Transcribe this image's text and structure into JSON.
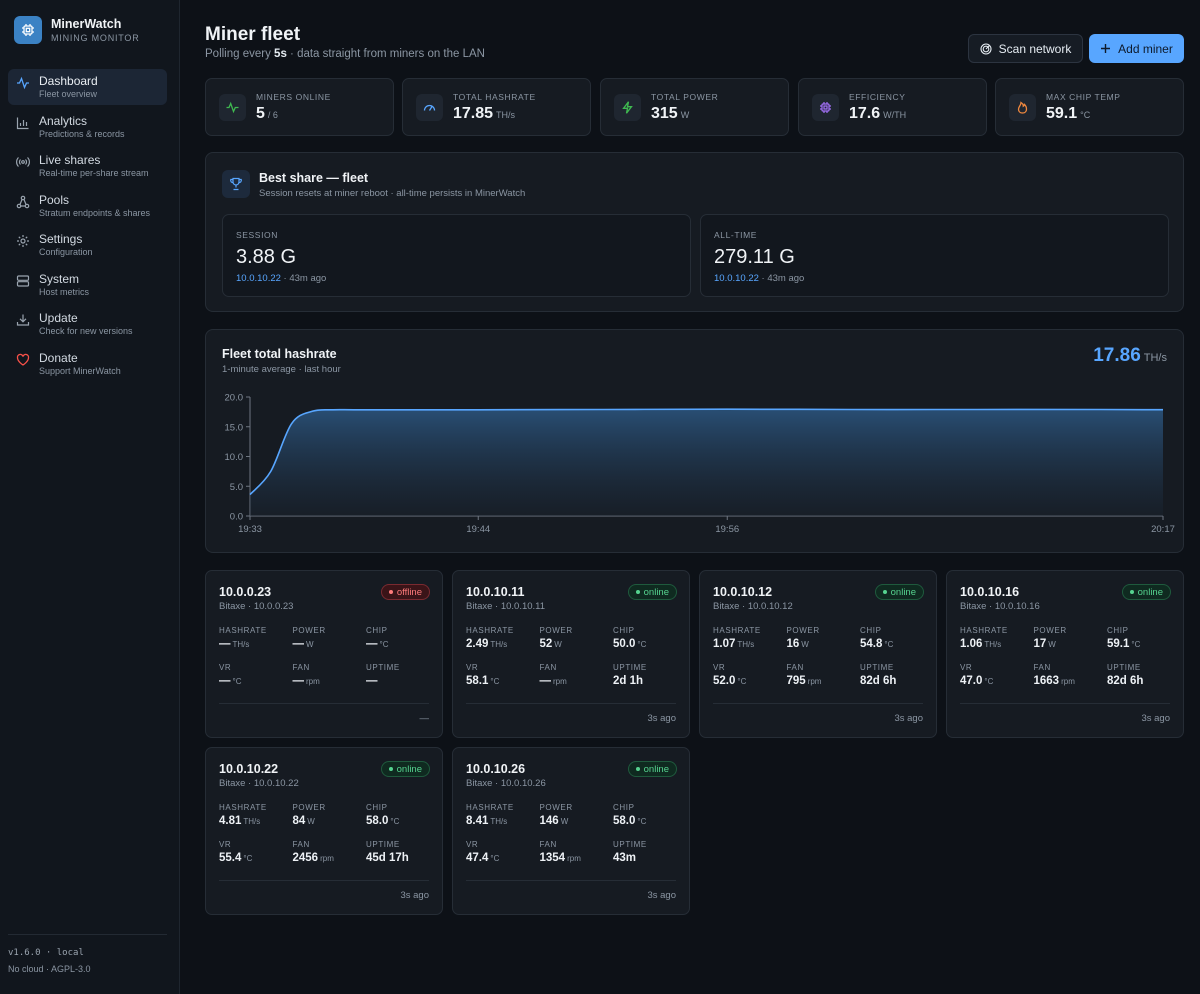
{
  "app": {
    "name": "MinerWatch",
    "subtitle": "MINING MONITOR"
  },
  "nav": [
    {
      "label": "Dashboard",
      "sub": "Fleet overview",
      "icon": "activity-icon",
      "active": true
    },
    {
      "label": "Analytics",
      "sub": "Predictions & records",
      "icon": "bar-chart-icon"
    },
    {
      "label": "Live shares",
      "sub": "Real-time per-share stream",
      "icon": "broadcast-icon"
    },
    {
      "label": "Pools",
      "sub": "Stratum endpoints & shares",
      "icon": "network-icon"
    },
    {
      "label": "Settings",
      "sub": "Configuration",
      "icon": "gear-icon"
    },
    {
      "label": "System",
      "sub": "Host metrics",
      "icon": "server-icon"
    },
    {
      "label": "Update",
      "sub": "Check for new versions",
      "icon": "download-icon"
    },
    {
      "label": "Donate",
      "sub": "Support MinerWatch",
      "icon": "heart-icon"
    }
  ],
  "footer": {
    "version": "v1.6.0 · local",
    "license": "No cloud · AGPL-3.0"
  },
  "header": {
    "title": "Miner fleet",
    "sub_pre": "Polling every ",
    "sub_interval": "5s",
    "sub_post": " · data straight from miners on the LAN",
    "scan_label": "Scan network",
    "add_label": "Add miner"
  },
  "stats": [
    {
      "label": "MINERS ONLINE",
      "value": "5",
      "unit": "/ 6",
      "icon": "pulse-icon",
      "color": "#3fb950"
    },
    {
      "label": "TOTAL HASHRATE",
      "value": "17.85",
      "unit": "TH/s",
      "icon": "gauge-icon",
      "color": "#58a6ff"
    },
    {
      "label": "TOTAL POWER",
      "value": "315",
      "unit": "W",
      "icon": "bolt-icon",
      "color": "#3fb950"
    },
    {
      "label": "EFFICIENCY",
      "value": "17.6",
      "unit": "W/TH",
      "icon": "chip-icon",
      "color": "#a371f7"
    },
    {
      "label": "MAX CHIP TEMP",
      "value": "59.1",
      "unit": "°C",
      "icon": "flame-icon",
      "color": "#f0883e"
    }
  ],
  "best_share": {
    "title": "Best share — fleet",
    "sub": "Session resets at miner reboot · all-time persists in MinerWatch",
    "session": {
      "label": "SESSION",
      "value": "3.88 G",
      "ip": "10.0.10.22",
      "ago": " · 43m ago"
    },
    "alltime": {
      "label": "ALL-TIME",
      "value": "279.11 G",
      "ip": "10.0.10.22",
      "ago": " · 43m ago"
    }
  },
  "chart": {
    "title": "Fleet total hashrate",
    "sub": "1-minute average · last hour",
    "current_value": "17.86",
    "current_unit": "TH/s"
  },
  "chart_data": {
    "type": "area",
    "title": "Fleet total hashrate",
    "xlabel": "",
    "ylabel": "",
    "ylim": [
      0,
      20
    ],
    "yticks": [
      "0.0",
      "5.0",
      "10.0",
      "15.0",
      "20.0"
    ],
    "xticks": [
      "19:33",
      "19:44",
      "19:56",
      "20:17"
    ],
    "x": [
      "19:33",
      "19:34",
      "19:35",
      "19:36",
      "19:37",
      "19:38",
      "19:40",
      "19:44",
      "19:50",
      "19:56",
      "20:02",
      "20:08",
      "20:14",
      "20:17"
    ],
    "values": [
      3.6,
      7.5,
      15.5,
      17.6,
      17.85,
      17.85,
      17.85,
      17.85,
      17.9,
      17.95,
      17.9,
      17.9,
      17.9,
      17.86
    ],
    "color": "#58a6ff",
    "grid": false
  },
  "miners": [
    {
      "ip": "10.0.0.23",
      "model": "Bitaxe · 10.0.0.23",
      "status": "offline",
      "hashrate": "—",
      "power": "—",
      "chip": "—",
      "vr": "—",
      "fan": "—",
      "uptime": "—",
      "ago": "—"
    },
    {
      "ip": "10.0.10.11",
      "model": "Bitaxe · 10.0.10.11",
      "status": "online",
      "hashrate": "2.49",
      "power": "52",
      "chip": "50.0",
      "vr": "58.1",
      "fan": "—",
      "uptime": "2d 1h",
      "ago": "3s ago"
    },
    {
      "ip": "10.0.10.12",
      "model": "Bitaxe · 10.0.10.12",
      "status": "online",
      "hashrate": "1.07",
      "power": "16",
      "chip": "54.8",
      "vr": "52.0",
      "fan": "795",
      "uptime": "82d 6h",
      "ago": "3s ago"
    },
    {
      "ip": "10.0.10.16",
      "model": "Bitaxe · 10.0.10.16",
      "status": "online",
      "hashrate": "1.06",
      "power": "17",
      "chip": "59.1",
      "vr": "47.0",
      "fan": "1663",
      "uptime": "82d 6h",
      "ago": "3s ago"
    },
    {
      "ip": "10.0.10.22",
      "model": "Bitaxe · 10.0.10.22",
      "status": "online",
      "hashrate": "4.81",
      "power": "84",
      "chip": "58.0",
      "vr": "55.4",
      "fan": "2456",
      "uptime": "45d 17h",
      "ago": "3s ago"
    },
    {
      "ip": "10.0.10.26",
      "model": "Bitaxe · 10.0.10.26",
      "status": "online",
      "hashrate": "8.41",
      "power": "146",
      "chip": "58.0",
      "vr": "47.4",
      "fan": "1354",
      "uptime": "43m",
      "ago": "3s ago"
    }
  ],
  "miner_labels": {
    "hashrate": "HASHRATE",
    "power": "POWER",
    "chip": "CHIP",
    "vr": "VR",
    "fan": "FAN",
    "uptime": "UPTIME",
    "u_hashrate": "TH/s",
    "u_power": "W",
    "u_temp": "°C",
    "u_fan": "rpm"
  }
}
